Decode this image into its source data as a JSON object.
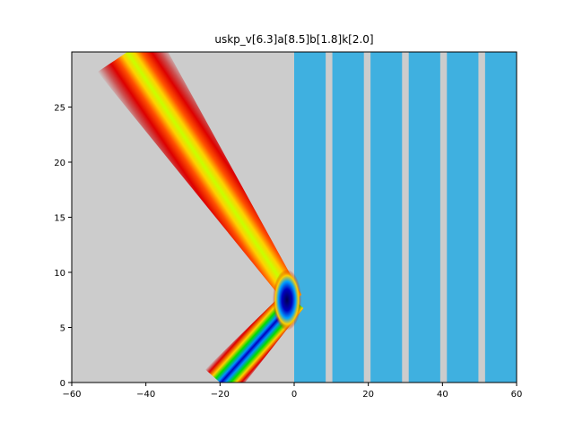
{
  "chart_data": {
    "type": "heatmap",
    "title": "uskp_v[6.3]a[8.5]b[1.8]k[2.0]",
    "xlabel": "",
    "ylabel": "",
    "xlim": [
      -60,
      60
    ],
    "ylim": [
      0,
      30
    ],
    "x_ticks": [
      -60,
      -40,
      -20,
      0,
      20,
      40,
      60
    ],
    "x_tick_labels": [
      "−60",
      "−40",
      "−20",
      "0",
      "20",
      "40",
      "60"
    ],
    "y_ticks": [
      0,
      5,
      10,
      15,
      20,
      25
    ],
    "y_tick_labels": [
      "0",
      "5",
      "10",
      "15",
      "20",
      "25"
    ],
    "background_color": "#cccccc",
    "barrier": {
      "color": "#3fb0e0",
      "x_start": 0,
      "x_end": 60,
      "slabs": [
        [
          0,
          8.5
        ],
        [
          10.3,
          18.8
        ],
        [
          20.6,
          29.1
        ],
        [
          30.9,
          39.4
        ],
        [
          41.2,
          49.7
        ],
        [
          51.5,
          60
        ]
      ]
    },
    "wave": {
      "incident_from": [
        -20,
        0
      ],
      "reflection_point": [
        0,
        7.5
      ],
      "reflected_to": [
        -45,
        30
      ],
      "colormap": [
        "#cc0000",
        "#ff2000",
        "#ffd000",
        "#c8ff00",
        "#00dd00",
        "#0090ff",
        "#0000c0"
      ]
    }
  }
}
